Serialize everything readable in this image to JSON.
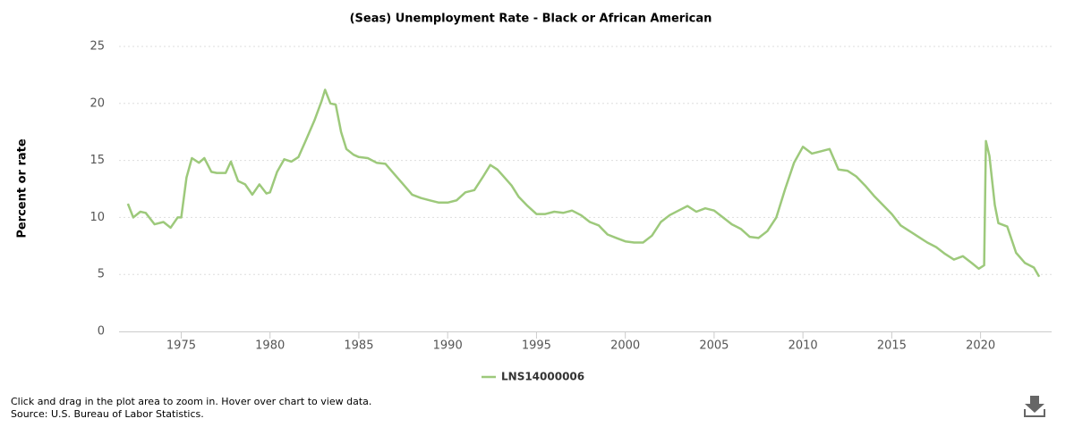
{
  "chart_data": {
    "type": "line",
    "title": "(Seas) Unemployment Rate - Black or African American",
    "y_label": "Percent or rate",
    "notes": [
      "Click and drag in the plot area to zoom in. Hover over chart to view data.",
      "Source: U.S. Bureau of Labor Statistics."
    ],
    "x": [
      1972.0,
      1972.3,
      1972.7,
      1973.0,
      1973.5,
      1974.0,
      1974.4,
      1974.8,
      1975.0,
      1975.3,
      1975.6,
      1976.0,
      1976.3,
      1976.7,
      1977.0,
      1977.5,
      1977.8,
      1978.2,
      1978.6,
      1979.0,
      1979.4,
      1979.8,
      1980.0,
      1980.4,
      1980.8,
      1981.2,
      1981.6,
      1982.0,
      1982.5,
      1982.9,
      1983.1,
      1983.4,
      1983.7,
      1984.0,
      1984.3,
      1984.7,
      1985.0,
      1985.5,
      1986.0,
      1986.5,
      1987.0,
      1987.5,
      1988.0,
      1988.5,
      1989.0,
      1989.5,
      1990.0,
      1990.5,
      1991.0,
      1991.5,
      1992.0,
      1992.4,
      1992.8,
      1993.2,
      1993.6,
      1994.0,
      1994.5,
      1995.0,
      1995.5,
      1996.0,
      1996.5,
      1997.0,
      1997.5,
      1998.0,
      1998.5,
      1999.0,
      1999.5,
      2000.0,
      2000.5,
      2001.0,
      2001.5,
      2002.0,
      2002.5,
      2003.0,
      2003.5,
      2004.0,
      2004.5,
      2005.0,
      2005.5,
      2006.0,
      2006.5,
      2007.0,
      2007.5,
      2008.0,
      2008.5,
      2009.0,
      2009.5,
      2010.0,
      2010.5,
      2011.0,
      2011.5,
      2012.0,
      2012.5,
      2013.0,
      2013.5,
      2014.0,
      2014.5,
      2015.0,
      2015.5,
      2016.0,
      2016.5,
      2017.0,
      2017.5,
      2018.0,
      2018.5,
      2019.0,
      2019.5,
      2019.9,
      2020.2,
      2020.3,
      2020.5,
      2020.8,
      2021.0,
      2021.5,
      2022.0,
      2022.5,
      2023.0,
      2023.3
    ],
    "series": [
      {
        "name": "LNS14000006",
        "color": "#9dc97b",
        "values": [
          11.2,
          10.0,
          10.5,
          10.4,
          9.4,
          9.6,
          9.1,
          10.0,
          10.0,
          13.5,
          15.2,
          14.8,
          15.2,
          14.0,
          13.9,
          13.9,
          14.9,
          13.2,
          12.9,
          12.0,
          12.9,
          12.1,
          12.2,
          14.0,
          15.1,
          14.9,
          15.3,
          16.7,
          18.5,
          20.2,
          21.2,
          20.0,
          19.9,
          17.5,
          16.0,
          15.5,
          15.3,
          15.2,
          14.8,
          14.7,
          13.8,
          12.9,
          12.0,
          11.7,
          11.5,
          11.3,
          11.3,
          11.5,
          12.2,
          12.4,
          13.6,
          14.6,
          14.2,
          13.5,
          12.8,
          11.8,
          11.0,
          10.3,
          10.3,
          10.5,
          10.4,
          10.6,
          10.2,
          9.6,
          9.3,
          8.5,
          8.2,
          7.9,
          7.8,
          7.8,
          8.4,
          9.6,
          10.2,
          10.6,
          11.0,
          10.5,
          10.8,
          10.6,
          10.0,
          9.4,
          9.0,
          8.3,
          8.2,
          8.8,
          10.0,
          12.5,
          14.8,
          16.2,
          15.6,
          15.8,
          16.0,
          14.2,
          14.1,
          13.6,
          12.8,
          11.9,
          11.1,
          10.3,
          9.3,
          8.8,
          8.3,
          7.8,
          7.4,
          6.8,
          6.3,
          6.6,
          6.0,
          5.5,
          5.8,
          16.7,
          15.4,
          11.1,
          9.5,
          9.2,
          6.9,
          6.0,
          5.6,
          4.8
        ]
      }
    ],
    "xlim": [
      1971.5,
      2024
    ],
    "xticks": [
      1975,
      1980,
      1985,
      1990,
      1995,
      2000,
      2005,
      2010,
      2015,
      2020
    ],
    "ylim": [
      0,
      25
    ],
    "yticks": [
      0,
      5,
      10,
      15,
      20,
      25
    ],
    "grid": true,
    "legend": "bottom"
  }
}
